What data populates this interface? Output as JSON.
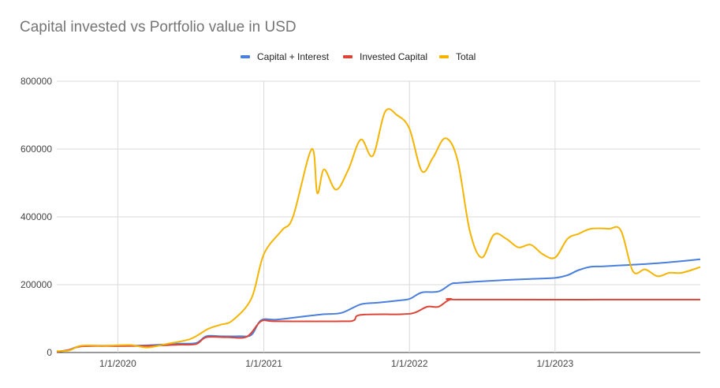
{
  "chart_data": {
    "type": "line",
    "title": "Capital invested vs Portfolio value in USD",
    "xlabel": "",
    "ylabel": "",
    "x_ticks": [
      "1/1/2020",
      "1/1/2021",
      "1/1/2022",
      "1/1/2023"
    ],
    "y_ticks": [
      "0",
      "200000",
      "400000",
      "600000",
      "800000"
    ],
    "ylim": [
      0,
      800000
    ],
    "xlim": [
      "2019-08-01",
      "2023-12-31"
    ],
    "grid": "on",
    "legend_position": "top-center",
    "series": [
      {
        "name": "Capital + Interest",
        "color": "#4a7fdc",
        "points": [
          [
            "2019-08-01",
            2000
          ],
          [
            "2019-09-01",
            8000
          ],
          [
            "2019-10-01",
            19000
          ],
          [
            "2019-12-01",
            20000
          ],
          [
            "2020-02-01",
            20000
          ],
          [
            "2020-04-01",
            22000
          ],
          [
            "2020-06-01",
            26000
          ],
          [
            "2020-07-15",
            28000
          ],
          [
            "2020-08-10",
            48000
          ],
          [
            "2020-09-15",
            48000
          ],
          [
            "2020-11-01",
            48000
          ],
          [
            "2020-12-01",
            52000
          ],
          [
            "2020-12-25",
            95000
          ],
          [
            "2021-02-01",
            97000
          ],
          [
            "2021-04-01",
            105000
          ],
          [
            "2021-06-01",
            113000
          ],
          [
            "2021-07-15",
            117000
          ],
          [
            "2021-09-01",
            142000
          ],
          [
            "2021-10-15",
            147000
          ],
          [
            "2021-12-01",
            153000
          ],
          [
            "2022-01-01",
            158000
          ],
          [
            "2022-02-01",
            177000
          ],
          [
            "2022-03-15",
            180000
          ],
          [
            "2022-04-15",
            202000
          ],
          [
            "2022-05-01",
            205000
          ],
          [
            "2022-07-01",
            210000
          ],
          [
            "2022-09-01",
            214000
          ],
          [
            "2022-11-01",
            217000
          ],
          [
            "2023-01-01",
            220000
          ],
          [
            "2023-02-01",
            228000
          ],
          [
            "2023-03-01",
            243000
          ],
          [
            "2023-04-01",
            253000
          ],
          [
            "2023-05-01",
            254000
          ],
          [
            "2023-07-01",
            258000
          ],
          [
            "2023-09-01",
            262000
          ],
          [
            "2023-11-01",
            268000
          ],
          [
            "2023-12-31",
            275000
          ]
        ]
      },
      {
        "name": "Invested Capital",
        "color": "#db4437",
        "points": [
          [
            "2019-08-01",
            2000
          ],
          [
            "2019-09-01",
            8000
          ],
          [
            "2019-10-01",
            18000
          ],
          [
            "2019-12-01",
            19000
          ],
          [
            "2020-02-01",
            19000
          ],
          [
            "2020-04-01",
            20000
          ],
          [
            "2020-06-01",
            23000
          ],
          [
            "2020-07-15",
            25000
          ],
          [
            "2020-08-10",
            45000
          ],
          [
            "2020-10-01",
            45000
          ],
          [
            "2020-11-20",
            47000
          ],
          [
            "2020-12-25",
            92000
          ],
          [
            "2021-02-01",
            92000
          ],
          [
            "2021-07-15",
            92000
          ],
          [
            "2021-08-15",
            95000
          ],
          [
            "2021-09-01",
            111000
          ],
          [
            "2021-12-15",
            113000
          ],
          [
            "2022-01-15",
            118000
          ],
          [
            "2022-02-15",
            135000
          ],
          [
            "2022-03-15",
            135000
          ],
          [
            "2022-04-15",
            157000
          ],
          [
            "2022-06-01",
            156000
          ],
          [
            "2023-12-31",
            156000
          ]
        ]
      },
      {
        "name": "Total",
        "color": "#f4b400",
        "points": [
          [
            "2019-08-01",
            4000
          ],
          [
            "2019-09-01",
            6000
          ],
          [
            "2019-10-01",
            20000
          ],
          [
            "2019-12-01",
            20000
          ],
          [
            "2020-02-01",
            22000
          ],
          [
            "2020-03-15",
            15000
          ],
          [
            "2020-05-01",
            25000
          ],
          [
            "2020-07-01",
            40000
          ],
          [
            "2020-08-15",
            70000
          ],
          [
            "2020-09-15",
            82000
          ],
          [
            "2020-10-15",
            95000
          ],
          [
            "2020-12-01",
            160000
          ],
          [
            "2021-01-01",
            290000
          ],
          [
            "2021-02-15",
            360000
          ],
          [
            "2021-03-15",
            400000
          ],
          [
            "2021-05-15",
            470000
          ],
          [
            "2021-05-01",
            600000
          ],
          [
            "2021-06-01",
            540000
          ],
          [
            "2021-07-01",
            480000
          ],
          [
            "2021-08-01",
            540000
          ],
          [
            "2021-09-01",
            628000
          ],
          [
            "2021-10-01",
            580000
          ],
          [
            "2021-11-01",
            710000
          ],
          [
            "2021-12-01",
            700000
          ],
          [
            "2022-01-01",
            660000
          ],
          [
            "2022-02-01",
            535000
          ],
          [
            "2022-03-01",
            575000
          ],
          [
            "2022-04-01",
            632000
          ],
          [
            "2022-05-01",
            570000
          ],
          [
            "2022-06-01",
            360000
          ],
          [
            "2022-07-01",
            280000
          ],
          [
            "2022-08-01",
            348000
          ],
          [
            "2022-09-01",
            335000
          ],
          [
            "2022-10-01",
            310000
          ],
          [
            "2022-11-01",
            318000
          ],
          [
            "2022-12-01",
            290000
          ],
          [
            "2023-01-01",
            280000
          ],
          [
            "2023-02-01",
            335000
          ],
          [
            "2023-03-01",
            350000
          ],
          [
            "2023-04-01",
            365000
          ],
          [
            "2023-05-15",
            365000
          ],
          [
            "2023-06-15",
            360000
          ],
          [
            "2023-07-15",
            240000
          ],
          [
            "2023-08-15",
            245000
          ],
          [
            "2023-09-15",
            225000
          ],
          [
            "2023-10-15",
            235000
          ],
          [
            "2023-11-15",
            235000
          ],
          [
            "2023-12-31",
            252000
          ]
        ]
      }
    ]
  }
}
